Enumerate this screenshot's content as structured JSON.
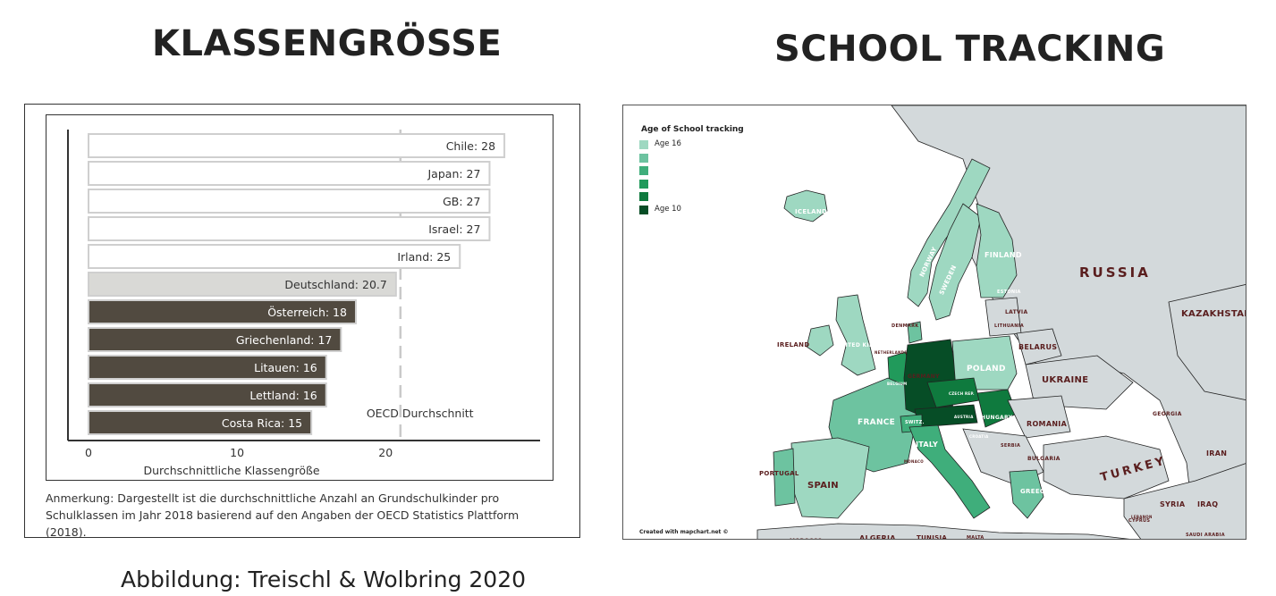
{
  "left_title": "KLASSENGRÖSSE",
  "right_title": "SCHOOL TRACKING",
  "caption": "Abbildung: Treischl & Wolbring 2020",
  "chart_data": {
    "type": "bar",
    "orientation": "horizontal",
    "bars": [
      {
        "label": "Chile: 28",
        "value": 28,
        "group": "above_oecd"
      },
      {
        "label": "Japan: 27",
        "value": 27,
        "group": "above_oecd"
      },
      {
        "label": "GB: 27",
        "value": 27,
        "group": "above_oecd"
      },
      {
        "label": "Israel: 27",
        "value": 27,
        "group": "above_oecd"
      },
      {
        "label": "Irland: 25",
        "value": 25,
        "group": "above_oecd"
      },
      {
        "label": "Deutschland: 20.7",
        "value": 20.7,
        "group": "germany"
      },
      {
        "label": "Österreich: 18",
        "value": 18,
        "group": "below_oecd"
      },
      {
        "label": "Griechenland: 17",
        "value": 17,
        "group": "below_oecd"
      },
      {
        "label": "Litauen: 16",
        "value": 16,
        "group": "below_oecd"
      },
      {
        "label": "Lettland: 16",
        "value": 16,
        "group": "below_oecd"
      },
      {
        "label": "Costa Rica: 15",
        "value": 15,
        "group": "below_oecd"
      }
    ],
    "reference_line": {
      "label": "OECD Durchschnitt",
      "value": 21
    },
    "xticks": [
      0,
      10,
      20
    ],
    "xlabel": "Durchschnittliche Klassengröße",
    "xlim": [
      0,
      29.5
    ],
    "note": "Anmerkung: Dargestellt ist die durchschnittliche Anzahl an Grundschulkinder pro Schulklassen im Jahr 2018 basierend auf den Angaben der OECD Statistics Plattform (2018).",
    "colors": {
      "above_oecd": "#ffffff",
      "germany": "#d9d9d6",
      "below_oecd": "#514a40",
      "stroke": "#cfcfcf"
    }
  },
  "map": {
    "legend_title": "Age of School tracking",
    "legend": [
      {
        "label": "Age 16",
        "color": "#9ed8c1"
      },
      {
        "label": "",
        "color": "#6dc3a0"
      },
      {
        "label": "",
        "color": "#3fae7b"
      },
      {
        "label": "",
        "color": "#219a5b"
      },
      {
        "label": "",
        "color": "#0f7a3e"
      },
      {
        "label": "Age 10",
        "color": "#064d26"
      }
    ],
    "credit": "Created with mapchart.net ©",
    "country_labels": [
      {
        "text": "ICELAND",
        "dark": false
      },
      {
        "text": "NORWAY",
        "dark": false
      },
      {
        "text": "SWEDEN",
        "dark": false
      },
      {
        "text": "FINLAND",
        "dark": false
      },
      {
        "text": "RUSSIA",
        "dark": true
      },
      {
        "text": "KAZAKHSTAN",
        "dark": true
      },
      {
        "text": "ESTONIA",
        "dark": false
      },
      {
        "text": "LATVIA",
        "dark": true
      },
      {
        "text": "LITHUANIA",
        "dark": true
      },
      {
        "text": "DENMARK",
        "dark": true
      },
      {
        "text": "IRELAND",
        "dark": true
      },
      {
        "text": "UNITED KINGDOM",
        "dark": false
      },
      {
        "text": "NETHERLANDS",
        "dark": true
      },
      {
        "text": "BELARUS",
        "dark": true
      },
      {
        "text": "GERMANY",
        "dark": true
      },
      {
        "text": "POLAND",
        "dark": false
      },
      {
        "text": "UKRAINE",
        "dark": true
      },
      {
        "text": "BELGIUM",
        "dark": false
      },
      {
        "text": "CZECH REP.",
        "dark": false
      },
      {
        "text": "FRANCE",
        "dark": false
      },
      {
        "text": "SWITZ.",
        "dark": false
      },
      {
        "text": "AUSTRIA",
        "dark": false
      },
      {
        "text": "HUNGARY",
        "dark": false
      },
      {
        "text": "ROMANIA",
        "dark": true
      },
      {
        "text": "GEORGIA",
        "dark": true
      },
      {
        "text": "ITALY",
        "dark": false
      },
      {
        "text": "CROATIA",
        "dark": false
      },
      {
        "text": "SERBIA",
        "dark": true
      },
      {
        "text": "BULGARIA",
        "dark": true
      },
      {
        "text": "PORTUGAL",
        "dark": true
      },
      {
        "text": "SPAIN",
        "dark": true
      },
      {
        "text": "MONACO",
        "dark": true
      },
      {
        "text": "GREECE",
        "dark": false
      },
      {
        "text": "TURKEY",
        "dark": true
      },
      {
        "text": "IRAN",
        "dark": true
      },
      {
        "text": "SYRIA",
        "dark": true
      },
      {
        "text": "IRAQ",
        "dark": true
      },
      {
        "text": "CYPRUS",
        "dark": true
      },
      {
        "text": "LEBANON",
        "dark": true
      },
      {
        "text": "MOROCCO",
        "dark": true
      },
      {
        "text": "ALGERIA",
        "dark": true
      },
      {
        "text": "TUNISIA",
        "dark": true
      },
      {
        "text": "MALTA",
        "dark": true
      },
      {
        "text": "SAUDI ARABIA",
        "dark": true
      }
    ]
  }
}
